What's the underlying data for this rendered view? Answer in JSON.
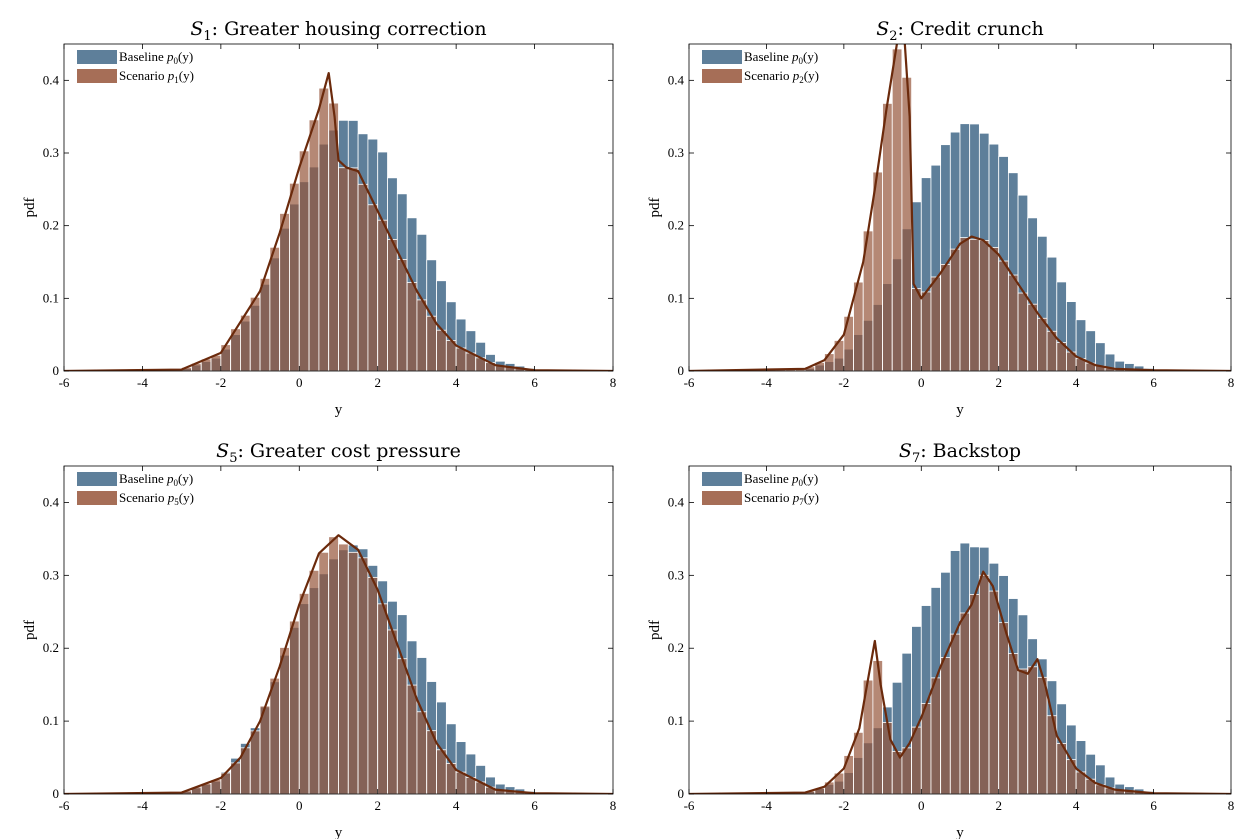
{
  "chart_data": [
    {
      "type": "bar",
      "title_symbol": "S",
      "title_sub": "1",
      "title_text": ": Greater housing correction",
      "xlabel": "y",
      "ylabel": "pdf",
      "xlim": [
        -6,
        8
      ],
      "ylim": [
        0,
        0.45
      ],
      "xticks": [
        "-6",
        "-4",
        "-2",
        "0",
        "2",
        "4",
        "6",
        "8"
      ],
      "yticks": [
        "0",
        "0.1",
        "0.2",
        "0.3",
        "0.4"
      ],
      "legend": {
        "position": "top-left",
        "entries": [
          {
            "prefix": "Baseline ",
            "math": "p",
            "sub": "0",
            "suffix": "(y)"
          },
          {
            "prefix": "Scenario ",
            "math": "p",
            "sub": "1",
            "suffix": "(y)"
          }
        ]
      },
      "bin_width": 0.25,
      "baseline_density": {
        "x": [
          -6,
          -3,
          -2,
          -1,
          0,
          1,
          1.5,
          2,
          3,
          4,
          5,
          6,
          8
        ],
        "y": [
          0,
          0.001,
          0.02,
          0.1,
          0.25,
          0.34,
          0.34,
          0.31,
          0.2,
          0.08,
          0.015,
          0.002,
          0
        ]
      },
      "scenario_density": {
        "x": [
          -6,
          -3,
          -2,
          -1,
          -0.5,
          0,
          0.5,
          0.75,
          0.9,
          1.0,
          1.2,
          1.5,
          2,
          2.5,
          3,
          3.5,
          4,
          5,
          6,
          8
        ],
        "y": [
          0,
          0.002,
          0.025,
          0.11,
          0.19,
          0.28,
          0.36,
          0.41,
          0.35,
          0.29,
          0.28,
          0.275,
          0.22,
          0.165,
          0.11,
          0.065,
          0.035,
          0.008,
          0.001,
          0
        ]
      }
    },
    {
      "type": "bar",
      "title_symbol": "S",
      "title_sub": "2",
      "title_text": ": Credit crunch",
      "xlabel": "y",
      "ylabel": "pdf",
      "xlim": [
        -6,
        8
      ],
      "ylim": [
        0,
        0.45
      ],
      "xticks": [
        "-6",
        "-4",
        "-2",
        "0",
        "2",
        "4",
        "6",
        "8"
      ],
      "yticks": [
        "0",
        "0.1",
        "0.2",
        "0.3",
        "0.4"
      ],
      "legend": {
        "position": "top-left",
        "entries": [
          {
            "prefix": "Baseline ",
            "math": "p",
            "sub": "0",
            "suffix": "(y)"
          },
          {
            "prefix": "Scenario ",
            "math": "p",
            "sub": "2",
            "suffix": "(y)"
          }
        ]
      },
      "bin_width": 0.25,
      "baseline_density": {
        "x": [
          -6,
          -3,
          -2,
          -1,
          0,
          1,
          1.5,
          2,
          3,
          4,
          5,
          6,
          8
        ],
        "y": [
          0,
          0.001,
          0.02,
          0.1,
          0.25,
          0.34,
          0.34,
          0.31,
          0.2,
          0.08,
          0.015,
          0.002,
          0
        ]
      },
      "scenario_density": {
        "x": [
          -6,
          -3,
          -2.5,
          -2,
          -1.5,
          -1.2,
          -0.9,
          -0.6,
          -0.45,
          -0.3,
          -0.2,
          0,
          0.5,
          1,
          1.3,
          1.6,
          2,
          2.5,
          3,
          3.5,
          4,
          4.5,
          5,
          6,
          8
        ],
        "y": [
          0,
          0.003,
          0.015,
          0.05,
          0.15,
          0.25,
          0.36,
          0.46,
          0.47,
          0.35,
          0.12,
          0.1,
          0.135,
          0.175,
          0.185,
          0.18,
          0.16,
          0.12,
          0.08,
          0.045,
          0.02,
          0.008,
          0.003,
          0.001,
          0
        ]
      }
    },
    {
      "type": "bar",
      "title_symbol": "S",
      "title_sub": "5",
      "title_text": ": Greater cost pressure",
      "xlabel": "y",
      "ylabel": "pdf",
      "xlim": [
        -6,
        8
      ],
      "ylim": [
        0,
        0.45
      ],
      "xticks": [
        "-6",
        "-4",
        "-2",
        "0",
        "2",
        "4",
        "6",
        "8"
      ],
      "yticks": [
        "0",
        "0.1",
        "0.2",
        "0.3",
        "0.4"
      ],
      "legend": {
        "position": "top-left",
        "entries": [
          {
            "prefix": "Baseline ",
            "math": "p",
            "sub": "0",
            "suffix": "(y)"
          },
          {
            "prefix": "Scenario ",
            "math": "p",
            "sub": "5",
            "suffix": "(y)"
          }
        ]
      },
      "bin_width": 0.25,
      "baseline_density": {
        "x": [
          -6,
          -3,
          -2,
          -1,
          0,
          1,
          1.5,
          2,
          3,
          4,
          5,
          6,
          8
        ],
        "y": [
          0,
          0.001,
          0.02,
          0.1,
          0.25,
          0.34,
          0.34,
          0.31,
          0.2,
          0.08,
          0.015,
          0.002,
          0
        ]
      },
      "scenario_density": {
        "x": [
          -6,
          -3,
          -2,
          -1.5,
          -1,
          -0.5,
          0,
          0.5,
          1,
          1.5,
          2,
          2.5,
          3,
          3.5,
          4,
          5,
          6,
          8
        ],
        "y": [
          0,
          0.002,
          0.022,
          0.05,
          0.1,
          0.175,
          0.26,
          0.33,
          0.355,
          0.335,
          0.28,
          0.205,
          0.13,
          0.07,
          0.033,
          0.006,
          0.001,
          0
        ]
      }
    },
    {
      "type": "bar",
      "title_symbol": "S",
      "title_sub": "7",
      "title_text": ": Backstop",
      "xlabel": "y",
      "ylabel": "pdf",
      "xlim": [
        -6,
        8
      ],
      "ylim": [
        0,
        0.45
      ],
      "xticks": [
        "-6",
        "-4",
        "-2",
        "0",
        "2",
        "4",
        "6",
        "8"
      ],
      "yticks": [
        "0",
        "0.1",
        "0.2",
        "0.3",
        "0.4"
      ],
      "legend": {
        "position": "top-left",
        "entries": [
          {
            "prefix": "Baseline ",
            "math": "p",
            "sub": "0",
            "suffix": "(y)"
          },
          {
            "prefix": "Scenario ",
            "math": "p",
            "sub": "7",
            "suffix": "(y)"
          }
        ]
      },
      "bin_width": 0.25,
      "baseline_density": {
        "x": [
          -6,
          -3,
          -2,
          -1,
          0,
          1,
          1.5,
          2,
          3,
          4,
          5,
          6,
          8
        ],
        "y": [
          0,
          0.001,
          0.02,
          0.1,
          0.25,
          0.34,
          0.34,
          0.31,
          0.2,
          0.08,
          0.015,
          0.002,
          0
        ]
      },
      "scenario_density": {
        "x": [
          -6,
          -3,
          -2.5,
          -2,
          -1.6,
          -1.35,
          -1.2,
          -1.05,
          -0.8,
          -0.55,
          -0.3,
          0,
          0.5,
          1,
          1.3,
          1.6,
          1.85,
          2.2,
          2.5,
          2.75,
          3.0,
          3.2,
          3.5,
          4,
          4.5,
          5,
          6,
          8
        ],
        "y": [
          0,
          0.002,
          0.01,
          0.035,
          0.09,
          0.165,
          0.21,
          0.15,
          0.075,
          0.05,
          0.07,
          0.105,
          0.175,
          0.235,
          0.26,
          0.305,
          0.285,
          0.22,
          0.17,
          0.165,
          0.185,
          0.15,
          0.08,
          0.035,
          0.015,
          0.006,
          0.001,
          0
        ]
      }
    }
  ]
}
